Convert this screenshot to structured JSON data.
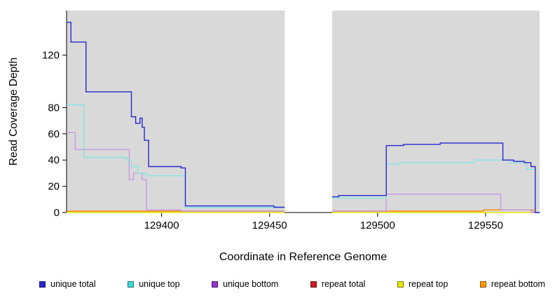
{
  "chart_data": {
    "type": "line",
    "xlabel": "Coordinate in Reference Genome",
    "ylabel": "Read Coverage Depth",
    "xlim": [
      129356,
      129575
    ],
    "ylim": [
      0,
      154
    ],
    "xticks": [
      129400,
      129450,
      129500,
      129550
    ],
    "yticks": [
      0,
      20,
      40,
      60,
      80,
      120
    ],
    "grid": false,
    "legend_position": "bottom",
    "plot_bg": "#d9d9d9",
    "gap_region": [
      129457,
      129479
    ],
    "series": [
      {
        "name": "repeat total",
        "color": "#cc2020",
        "points": [
          [
            129356,
            1
          ],
          [
            129457,
            1
          ],
          null,
          [
            129479,
            1
          ],
          [
            129549,
            1
          ],
          [
            129549,
            2
          ],
          [
            129572,
            2
          ],
          [
            129572,
            0
          ],
          [
            129575,
            0
          ]
        ]
      },
      {
        "name": "repeat top",
        "color": "#e8e800",
        "points": [
          [
            129356,
            0
          ],
          [
            129457,
            0
          ],
          null,
          [
            129479,
            0
          ],
          [
            129575,
            0
          ]
        ]
      },
      {
        "name": "repeat bottom",
        "color": "#ff9900",
        "points": [
          [
            129356,
            1
          ],
          [
            129457,
            1
          ],
          null,
          [
            129479,
            1
          ],
          [
            129549,
            1
          ],
          [
            129549,
            2
          ],
          [
            129572,
            2
          ],
          [
            129572,
            0
          ],
          [
            129575,
            0
          ]
        ]
      },
      {
        "name": "unique bottom",
        "color": "#9933cc",
        "line_color": "#c79ae0",
        "points": [
          [
            129356,
            61
          ],
          [
            129360,
            61
          ],
          [
            129360,
            48
          ],
          [
            129385,
            48
          ],
          [
            129385,
            25
          ],
          [
            129387,
            25
          ],
          [
            129387,
            30
          ],
          [
            129391,
            30
          ],
          [
            129391,
            25
          ],
          [
            129393,
            25
          ],
          [
            129393,
            2
          ],
          [
            129409,
            2
          ],
          [
            129409,
            1
          ],
          [
            129457,
            1
          ],
          null,
          [
            129479,
            1
          ],
          [
            129504,
            1
          ],
          [
            129504,
            14
          ],
          [
            129557,
            14
          ],
          [
            129557,
            2
          ],
          [
            129571,
            2
          ],
          [
            129571,
            0
          ],
          [
            129575,
            0
          ]
        ]
      },
      {
        "name": "unique top",
        "color": "#3fd6d6",
        "line_color": "#85e4e4",
        "points": [
          [
            129356,
            82
          ],
          [
            129364,
            82
          ],
          [
            129364,
            42
          ],
          [
            129384,
            42
          ],
          [
            129384,
            40
          ],
          [
            129386,
            40
          ],
          [
            129386,
            35
          ],
          [
            129389,
            35
          ],
          [
            129389,
            30
          ],
          [
            129393,
            30
          ],
          [
            129393,
            28
          ],
          [
            129411,
            28
          ],
          [
            129411,
            4
          ],
          [
            129457,
            4
          ],
          null,
          [
            129479,
            11
          ],
          [
            129504,
            11
          ],
          [
            129504,
            37
          ],
          [
            129510,
            37
          ],
          [
            129510,
            38
          ],
          [
            129545,
            38
          ],
          [
            129545,
            40
          ],
          [
            129561,
            40
          ],
          [
            129561,
            38
          ],
          [
            129569,
            38
          ],
          [
            129569,
            33
          ],
          [
            129573,
            33
          ],
          [
            129573,
            0
          ],
          [
            129575,
            0
          ]
        ]
      },
      {
        "name": "unique total",
        "color": "#2727cf",
        "points": [
          [
            129356,
            145
          ],
          [
            129358,
            145
          ],
          [
            129358,
            130
          ],
          [
            129365,
            130
          ],
          [
            129365,
            92
          ],
          [
            129386,
            92
          ],
          [
            129386,
            73
          ],
          [
            129388,
            73
          ],
          [
            129388,
            68
          ],
          [
            129390,
            68
          ],
          [
            129390,
            72
          ],
          [
            129391,
            72
          ],
          [
            129391,
            65
          ],
          [
            129392,
            65
          ],
          [
            129392,
            55
          ],
          [
            129394,
            55
          ],
          [
            129394,
            35
          ],
          [
            129409,
            35
          ],
          [
            129409,
            34
          ],
          [
            129411,
            34
          ],
          [
            129411,
            5
          ],
          [
            129452,
            5
          ],
          [
            129452,
            4
          ],
          [
            129457,
            4
          ],
          null,
          [
            129479,
            12
          ],
          [
            129482,
            12
          ],
          [
            129482,
            13
          ],
          [
            129504,
            13
          ],
          [
            129504,
            51
          ],
          [
            129512,
            51
          ],
          [
            129512,
            52
          ],
          [
            129529,
            52
          ],
          [
            129529,
            53
          ],
          [
            129558,
            53
          ],
          [
            129558,
            40
          ],
          [
            129563,
            40
          ],
          [
            129563,
            39
          ],
          [
            129568,
            39
          ],
          [
            129568,
            38
          ],
          [
            129571,
            38
          ],
          [
            129571,
            35
          ],
          [
            129573,
            35
          ],
          [
            129573,
            0
          ],
          [
            129575,
            0
          ]
        ]
      }
    ],
    "legend_order": [
      "unique total",
      "unique top",
      "unique bottom",
      "repeat total",
      "repeat top",
      "repeat bottom"
    ]
  }
}
